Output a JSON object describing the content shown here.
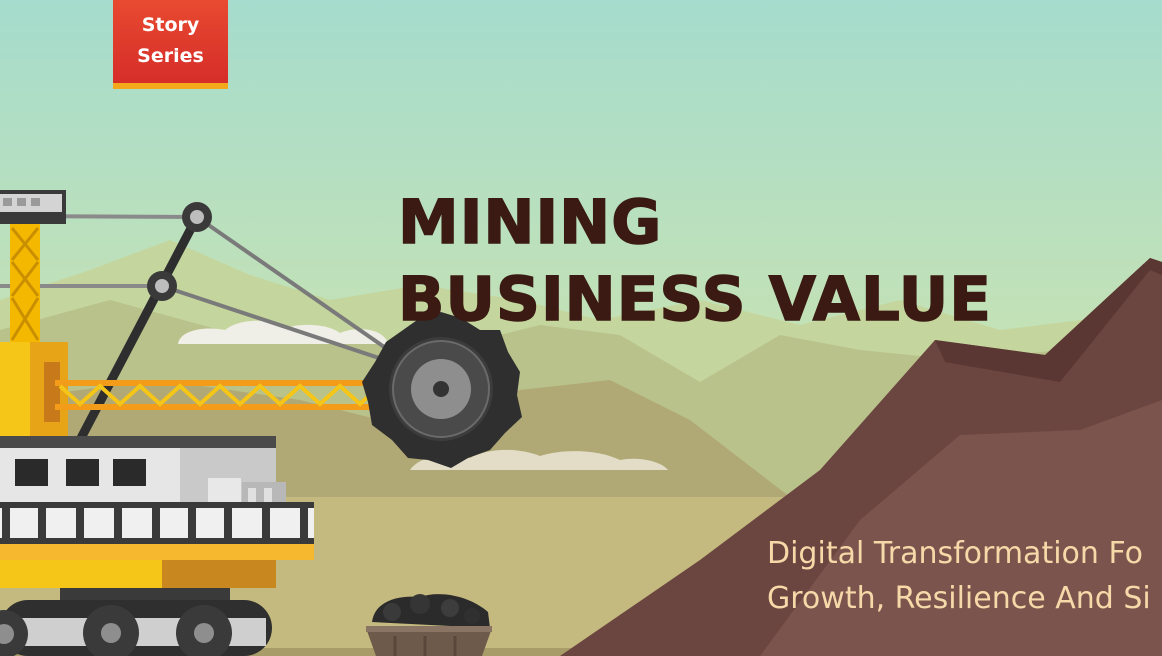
{
  "badge": {
    "line1": "Story",
    "line2": "Series"
  },
  "title": {
    "line1": "MINING",
    "line2": "BUSINESS VALUE"
  },
  "subtitle": {
    "line1": "Digital Transformation Fo",
    "line2": "Growth, Resilience And Si"
  },
  "colors": {
    "sky_top": "#a5dccd",
    "sky_bottom": "#cfe2a6",
    "mountain_brown": "#6b4540",
    "badge_red": "#e0382c",
    "badge_stripe": "#f4a81c",
    "title_text": "#3a1a12",
    "subtitle_text": "#f6d9a8",
    "machine_yellow": "#f5c518"
  }
}
